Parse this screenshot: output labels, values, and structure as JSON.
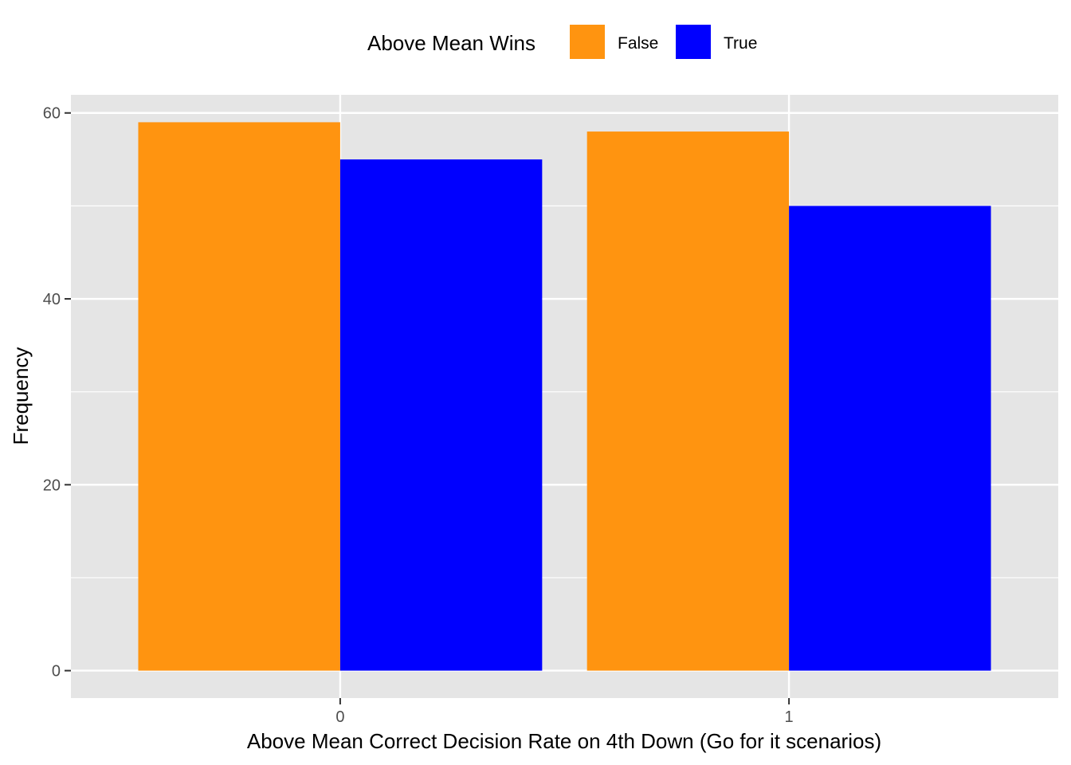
{
  "chart_data": {
    "type": "bar",
    "xlabel": "Above Mean Correct Decision Rate on 4th Down (Go for it scenarios)",
    "ylabel": "Frequency",
    "categories": [
      "0",
      "1"
    ],
    "legend": {
      "title": "Above Mean Wins",
      "position": "top"
    },
    "series": [
      {
        "name": "False",
        "color": "#ff9410",
        "values": [
          59,
          58
        ]
      },
      {
        "name": "True",
        "color": "#0000ff",
        "values": [
          55,
          50
        ]
      }
    ],
    "ylim": [
      -2.95,
      61.95
    ],
    "yticks": [
      0,
      20,
      40,
      60
    ],
    "grid": true,
    "panel_background": "#e5e5e5",
    "grid_color": "#ffffff"
  }
}
